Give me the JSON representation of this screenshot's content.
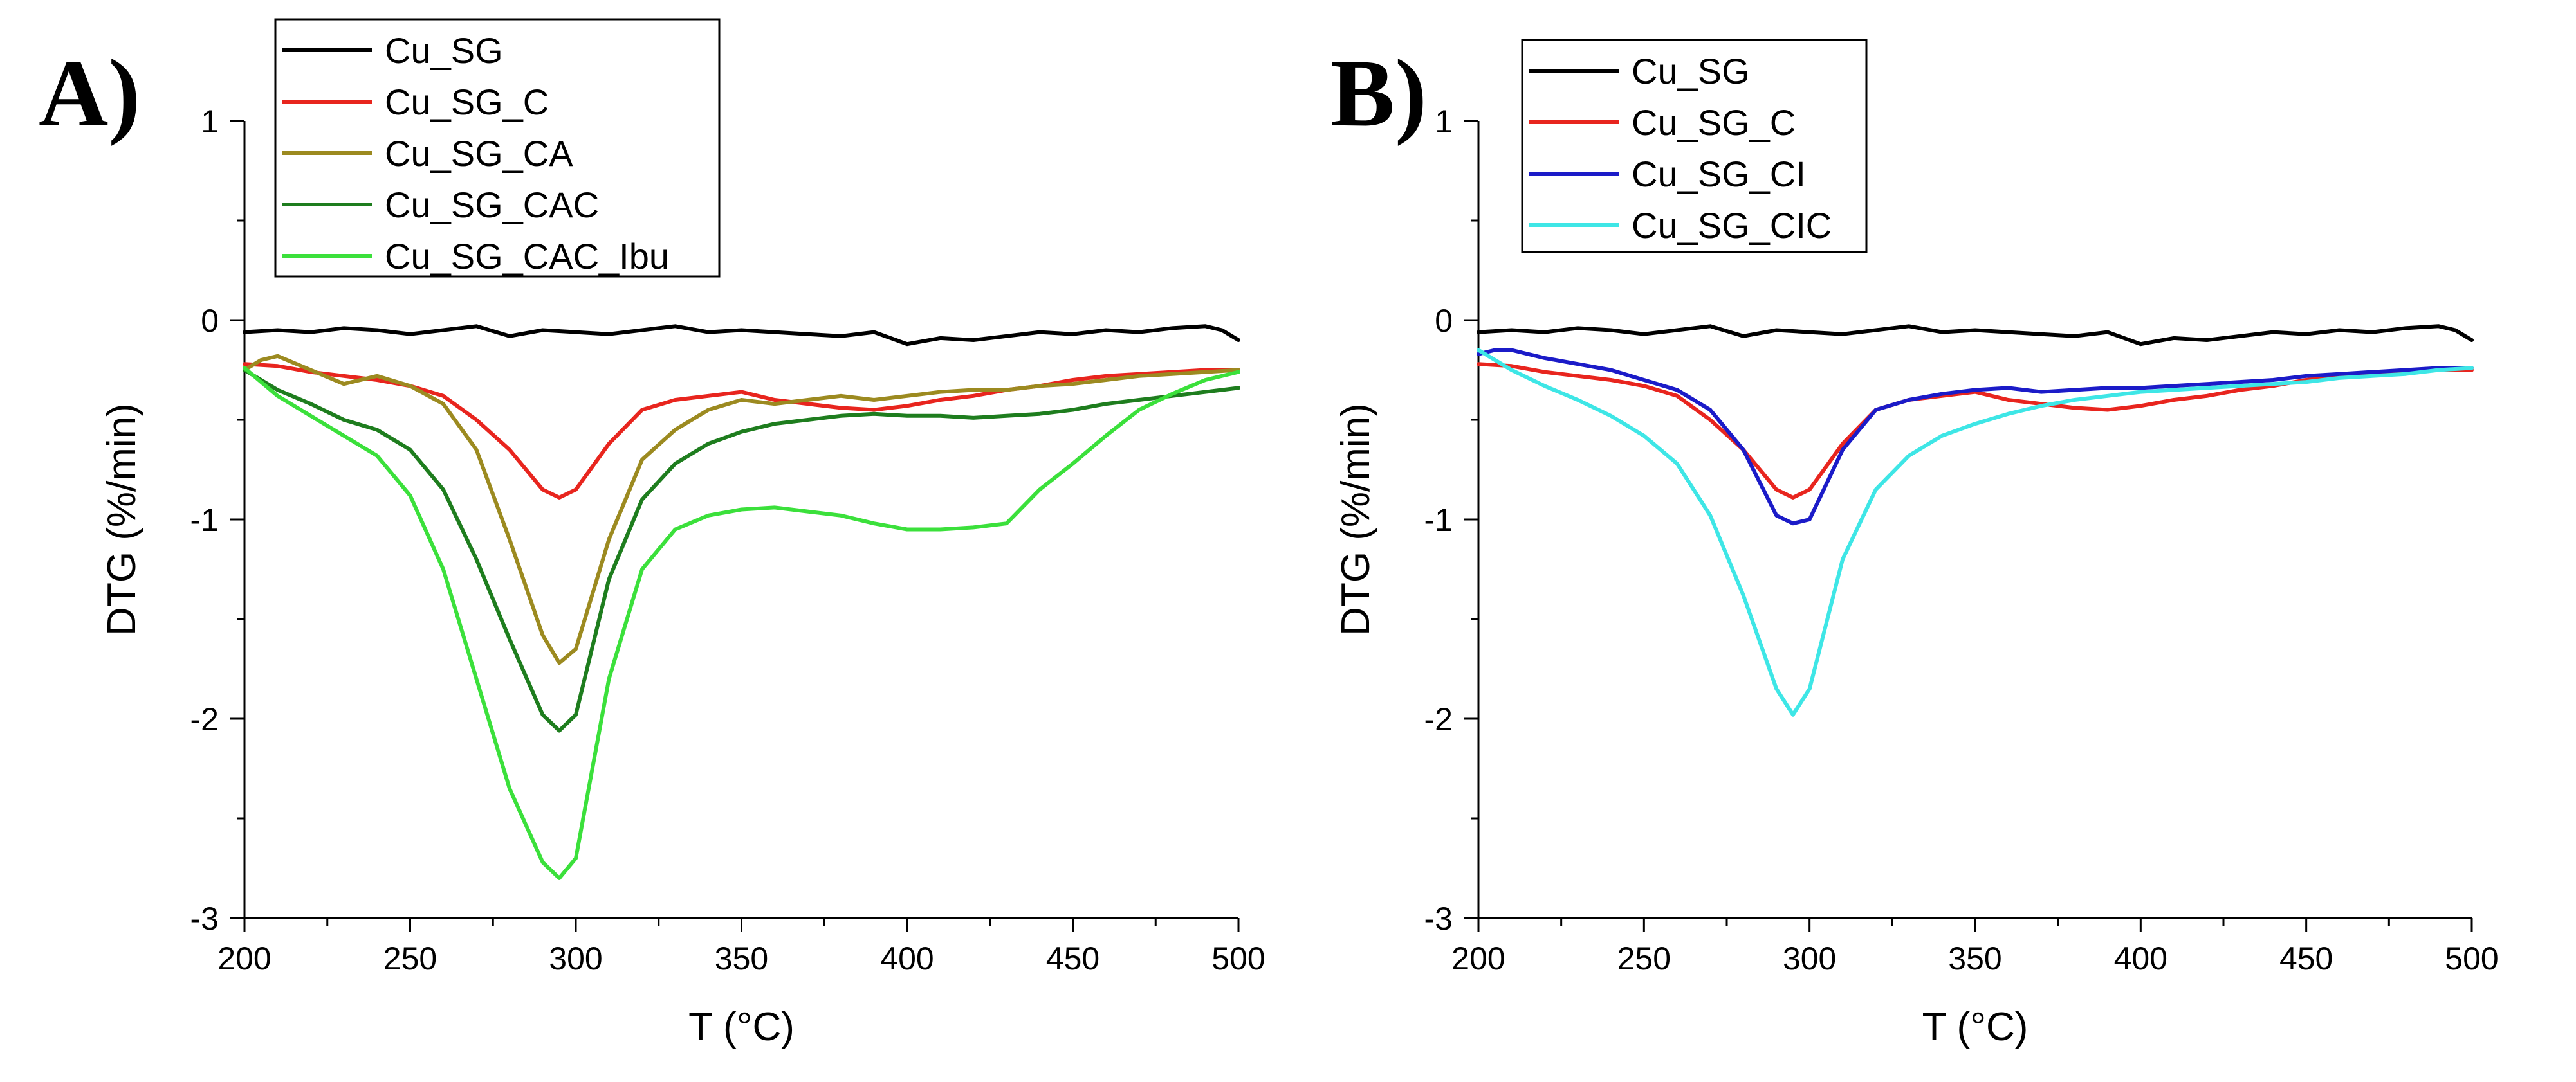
{
  "chart_data": [
    {
      "type": "line",
      "panel_label": "A)",
      "title": "",
      "xlabel": "T (°C)",
      "ylabel": "DTG (%/min)",
      "xlim": [
        200,
        500
      ],
      "ylim": [
        -3,
        1
      ],
      "xticks": [
        200,
        250,
        300,
        350,
        400,
        450,
        500
      ],
      "yticks": [
        -3,
        -2,
        -1,
        0,
        1
      ],
      "legend_position": "top-left",
      "grid": false,
      "series": [
        {
          "name": "Cu_SG",
          "color": "#000000",
          "x": [
            200,
            210,
            220,
            230,
            240,
            250,
            260,
            270,
            280,
            290,
            300,
            310,
            320,
            330,
            340,
            350,
            360,
            370,
            380,
            390,
            400,
            410,
            420,
            430,
            440,
            450,
            460,
            470,
            480,
            490,
            495,
            500
          ],
          "y": [
            -0.06,
            -0.05,
            -0.06,
            -0.04,
            -0.05,
            -0.07,
            -0.05,
            -0.03,
            -0.08,
            -0.05,
            -0.06,
            -0.07,
            -0.05,
            -0.03,
            -0.06,
            -0.05,
            -0.06,
            -0.07,
            -0.08,
            -0.06,
            -0.12,
            -0.09,
            -0.1,
            -0.08,
            -0.06,
            -0.07,
            -0.05,
            -0.06,
            -0.04,
            -0.03,
            -0.05,
            -0.1
          ]
        },
        {
          "name": "Cu_SG_C",
          "color": "#e8251e",
          "x": [
            200,
            210,
            220,
            230,
            240,
            250,
            260,
            270,
            280,
            290,
            295,
            300,
            310,
            320,
            330,
            340,
            350,
            360,
            370,
            380,
            390,
            400,
            410,
            420,
            430,
            440,
            450,
            460,
            470,
            480,
            490,
            500
          ],
          "y": [
            -0.22,
            -0.23,
            -0.26,
            -0.28,
            -0.3,
            -0.33,
            -0.38,
            -0.5,
            -0.65,
            -0.85,
            -0.89,
            -0.85,
            -0.62,
            -0.45,
            -0.4,
            -0.38,
            -0.36,
            -0.4,
            -0.42,
            -0.44,
            -0.45,
            -0.43,
            -0.4,
            -0.38,
            -0.35,
            -0.33,
            -0.3,
            -0.28,
            -0.27,
            -0.26,
            -0.25,
            -0.25
          ]
        },
        {
          "name": "Cu_SG_CA",
          "color": "#9c8a20",
          "x": [
            200,
            205,
            210,
            220,
            230,
            240,
            250,
            260,
            270,
            280,
            290,
            295,
            300,
            310,
            320,
            330,
            340,
            350,
            360,
            370,
            380,
            390,
            400,
            410,
            420,
            430,
            440,
            450,
            460,
            470,
            480,
            490,
            500
          ],
          "y": [
            -0.25,
            -0.2,
            -0.18,
            -0.25,
            -0.32,
            -0.28,
            -0.33,
            -0.42,
            -0.65,
            -1.1,
            -1.58,
            -1.72,
            -1.65,
            -1.1,
            -0.7,
            -0.55,
            -0.45,
            -0.4,
            -0.42,
            -0.4,
            -0.38,
            -0.4,
            -0.38,
            -0.36,
            -0.35,
            -0.35,
            -0.33,
            -0.32,
            -0.3,
            -0.28,
            -0.27,
            -0.26,
            -0.25
          ]
        },
        {
          "name": "Cu_SG_CAC",
          "color": "#1e7d1e",
          "x": [
            200,
            210,
            220,
            230,
            240,
            250,
            260,
            270,
            280,
            290,
            295,
            300,
            310,
            320,
            330,
            340,
            350,
            360,
            370,
            380,
            390,
            400,
            410,
            420,
            430,
            440,
            450,
            460,
            470,
            480,
            490,
            500
          ],
          "y": [
            -0.25,
            -0.35,
            -0.42,
            -0.5,
            -0.55,
            -0.65,
            -0.85,
            -1.2,
            -1.6,
            -1.98,
            -2.06,
            -1.98,
            -1.3,
            -0.9,
            -0.72,
            -0.62,
            -0.56,
            -0.52,
            -0.5,
            -0.48,
            -0.47,
            -0.48,
            -0.48,
            -0.49,
            -0.48,
            -0.47,
            -0.45,
            -0.42,
            -0.4,
            -0.38,
            -0.36,
            -0.34
          ]
        },
        {
          "name": "Cu_SG_CAC_Ibu",
          "color": "#3be03b",
          "x": [
            200,
            210,
            220,
            230,
            240,
            250,
            260,
            270,
            280,
            290,
            295,
            300,
            310,
            320,
            330,
            340,
            350,
            360,
            370,
            380,
            390,
            400,
            410,
            420,
            430,
            440,
            450,
            460,
            470,
            480,
            490,
            500
          ],
          "y": [
            -0.24,
            -0.38,
            -0.48,
            -0.58,
            -0.68,
            -0.88,
            -1.25,
            -1.8,
            -2.35,
            -2.72,
            -2.8,
            -2.7,
            -1.8,
            -1.25,
            -1.05,
            -0.98,
            -0.95,
            -0.94,
            -0.96,
            -0.98,
            -1.02,
            -1.05,
            -1.05,
            -1.04,
            -1.02,
            -0.85,
            -0.72,
            -0.58,
            -0.45,
            -0.37,
            -0.3,
            -0.26
          ]
        }
      ]
    },
    {
      "type": "line",
      "panel_label": "B)",
      "title": "",
      "xlabel": "T (°C)",
      "ylabel": "DTG (%/min)",
      "xlim": [
        200,
        500
      ],
      "ylim": [
        -3,
        1
      ],
      "xticks": [
        200,
        250,
        300,
        350,
        400,
        450,
        500
      ],
      "yticks": [
        -3,
        -2,
        -1,
        0,
        1
      ],
      "legend_position": "top-left",
      "grid": false,
      "series": [
        {
          "name": "Cu_SG",
          "color": "#000000",
          "x": [
            200,
            210,
            220,
            230,
            240,
            250,
            260,
            270,
            280,
            290,
            300,
            310,
            320,
            330,
            340,
            350,
            360,
            370,
            380,
            390,
            400,
            410,
            420,
            430,
            440,
            450,
            460,
            470,
            480,
            490,
            495,
            500
          ],
          "y": [
            -0.06,
            -0.05,
            -0.06,
            -0.04,
            -0.05,
            -0.07,
            -0.05,
            -0.03,
            -0.08,
            -0.05,
            -0.06,
            -0.07,
            -0.05,
            -0.03,
            -0.06,
            -0.05,
            -0.06,
            -0.07,
            -0.08,
            -0.06,
            -0.12,
            -0.09,
            -0.1,
            -0.08,
            -0.06,
            -0.07,
            -0.05,
            -0.06,
            -0.04,
            -0.03,
            -0.05,
            -0.1
          ]
        },
        {
          "name": "Cu_SG_C",
          "color": "#e8251e",
          "x": [
            200,
            210,
            220,
            230,
            240,
            250,
            260,
            270,
            280,
            290,
            295,
            300,
            310,
            320,
            330,
            340,
            350,
            360,
            370,
            380,
            390,
            400,
            410,
            420,
            430,
            440,
            450,
            460,
            470,
            480,
            490,
            500
          ],
          "y": [
            -0.22,
            -0.23,
            -0.26,
            -0.28,
            -0.3,
            -0.33,
            -0.38,
            -0.5,
            -0.65,
            -0.85,
            -0.89,
            -0.85,
            -0.62,
            -0.45,
            -0.4,
            -0.38,
            -0.36,
            -0.4,
            -0.42,
            -0.44,
            -0.45,
            -0.43,
            -0.4,
            -0.38,
            -0.35,
            -0.33,
            -0.3,
            -0.28,
            -0.27,
            -0.26,
            -0.25,
            -0.25
          ]
        },
        {
          "name": "Cu_SG_CI",
          "color": "#1b1bc8",
          "x": [
            200,
            205,
            210,
            220,
            230,
            240,
            250,
            260,
            270,
            280,
            290,
            295,
            300,
            310,
            320,
            330,
            340,
            350,
            360,
            370,
            380,
            390,
            400,
            410,
            420,
            430,
            440,
            450,
            460,
            470,
            480,
            490,
            500
          ],
          "y": [
            -0.17,
            -0.15,
            -0.15,
            -0.19,
            -0.22,
            -0.25,
            -0.3,
            -0.35,
            -0.45,
            -0.65,
            -0.98,
            -1.02,
            -1.0,
            -0.65,
            -0.45,
            -0.4,
            -0.37,
            -0.35,
            -0.34,
            -0.36,
            -0.35,
            -0.34,
            -0.34,
            -0.33,
            -0.32,
            -0.31,
            -0.3,
            -0.28,
            -0.27,
            -0.26,
            -0.25,
            -0.24,
            -0.24
          ]
        },
        {
          "name": "Cu_SG_CIC",
          "color": "#3ee6e6",
          "x": [
            200,
            210,
            220,
            230,
            240,
            250,
            260,
            270,
            280,
            290,
            295,
            300,
            310,
            320,
            330,
            340,
            350,
            360,
            370,
            380,
            390,
            400,
            410,
            420,
            430,
            440,
            450,
            460,
            470,
            480,
            490,
            500
          ],
          "y": [
            -0.15,
            -0.25,
            -0.33,
            -0.4,
            -0.48,
            -0.58,
            -0.72,
            -0.98,
            -1.38,
            -1.85,
            -1.98,
            -1.85,
            -1.2,
            -0.85,
            -0.68,
            -0.58,
            -0.52,
            -0.47,
            -0.43,
            -0.4,
            -0.38,
            -0.36,
            -0.35,
            -0.34,
            -0.33,
            -0.32,
            -0.31,
            -0.29,
            -0.28,
            -0.27,
            -0.25,
            -0.24
          ]
        }
      ]
    }
  ]
}
